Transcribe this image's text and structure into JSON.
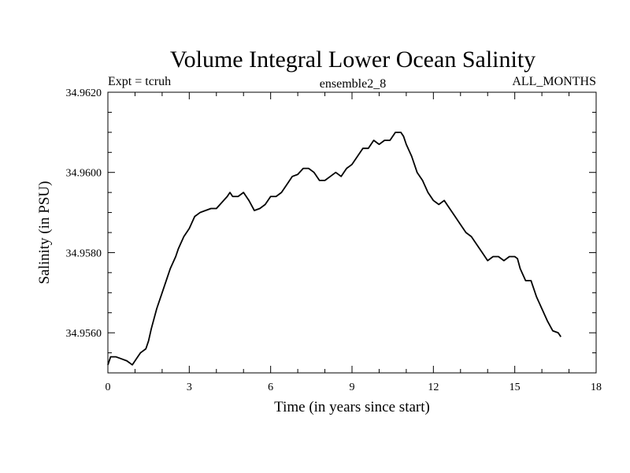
{
  "chart_data": {
    "type": "line",
    "title": "Volume Integral Lower Ocean Salinity",
    "subtitle_left": "Expt = tcruh",
    "subtitle_center": "ensemble2_8",
    "subtitle_right": "ALL_MONTHS",
    "xlabel": "Time (in years since start)",
    "ylabel": "Salinity (in PSU)",
    "xlim": [
      0,
      18
    ],
    "ylim": [
      34.955,
      34.962
    ],
    "xticks": [
      0,
      3,
      6,
      9,
      12,
      15,
      18
    ],
    "xtick_labels": [
      "0",
      "3",
      "6",
      "9",
      "12",
      "15",
      "18"
    ],
    "yticks": [
      34.956,
      34.958,
      34.96,
      34.962
    ],
    "ytick_labels": [
      "34.9560",
      "34.9580",
      "34.9600",
      "34.9620"
    ],
    "series": [
      {
        "name": "salinity",
        "x": [
          0.0,
          0.1,
          0.2,
          0.3,
          0.5,
          0.7,
          0.9,
          1.0,
          1.1,
          1.2,
          1.4,
          1.5,
          1.6,
          1.8,
          2.0,
          2.2,
          2.3,
          2.5,
          2.6,
          2.8,
          3.0,
          3.2,
          3.4,
          3.6,
          3.8,
          4.0,
          4.2,
          4.4,
          4.5,
          4.6,
          4.8,
          5.0,
          5.1,
          5.2,
          5.4,
          5.6,
          5.8,
          6.0,
          6.2,
          6.4,
          6.6,
          6.8,
          7.0,
          7.2,
          7.4,
          7.6,
          7.8,
          8.0,
          8.2,
          8.4,
          8.6,
          8.8,
          9.0,
          9.2,
          9.4,
          9.6,
          9.8,
          10.0,
          10.2,
          10.4,
          10.6,
          10.8,
          10.9,
          11.0,
          11.2,
          11.4,
          11.6,
          11.8,
          12.0,
          12.2,
          12.4,
          12.6,
          12.8,
          13.0,
          13.2,
          13.4,
          13.6,
          13.8,
          14.0,
          14.2,
          14.4,
          14.6,
          14.8,
          15.0,
          15.1,
          15.2,
          15.4,
          15.6,
          15.8,
          16.0,
          16.2,
          16.4,
          16.6,
          16.7
        ],
        "values": [
          34.9552,
          34.9554,
          34.9554,
          34.9554,
          34.95535,
          34.9553,
          34.9552,
          34.9553,
          34.9554,
          34.9555,
          34.9556,
          34.9558,
          34.9561,
          34.9566,
          34.957,
          34.9574,
          34.9576,
          34.9579,
          34.9581,
          34.9584,
          34.9586,
          34.9589,
          34.959,
          34.95905,
          34.9591,
          34.9591,
          34.95925,
          34.9594,
          34.9595,
          34.9594,
          34.9594,
          34.9595,
          34.9594,
          34.9593,
          34.95905,
          34.9591,
          34.9592,
          34.9594,
          34.9594,
          34.9595,
          34.9597,
          34.9599,
          34.95995,
          34.9601,
          34.9601,
          34.96,
          34.9598,
          34.9598,
          34.9599,
          34.96,
          34.9599,
          34.9601,
          34.9602,
          34.9604,
          34.9606,
          34.9606,
          34.9608,
          34.9607,
          34.9608,
          34.9608,
          34.961,
          34.961,
          34.9609,
          34.9607,
          34.9604,
          34.96,
          34.9598,
          34.9595,
          34.9593,
          34.9592,
          34.9593,
          34.9591,
          34.9589,
          34.9587,
          34.9585,
          34.9584,
          34.9582,
          34.958,
          34.9578,
          34.9579,
          34.9579,
          34.9578,
          34.9579,
          34.9579,
          34.95785,
          34.9576,
          34.9573,
          34.9573,
          34.9569,
          34.9566,
          34.9563,
          34.95605,
          34.956,
          34.9559
        ]
      }
    ]
  }
}
